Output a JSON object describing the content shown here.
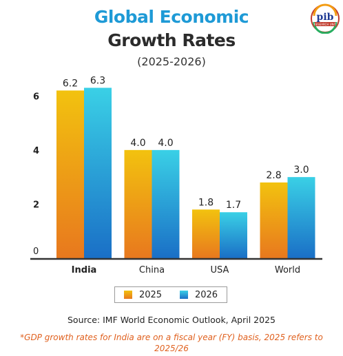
{
  "header": {
    "title_line1": "Global Economic",
    "title_line2": "Growth Rates",
    "subtitle": "(2025-2026)"
  },
  "logo": {
    "text": "pib",
    "caption": "RESEARCH UNIT"
  },
  "chart_data": {
    "type": "bar",
    "categories": [
      "India",
      "China",
      "USA",
      "World"
    ],
    "series": [
      {
        "name": "2025",
        "values": [
          6.2,
          4.0,
          1.8,
          2.8
        ],
        "labels": [
          "6.2",
          "4.0",
          "1.8",
          "2.8"
        ]
      },
      {
        "name": "2026",
        "values": [
          6.3,
          4.0,
          1.7,
          3.0
        ],
        "labels": [
          "6.3",
          "4.0",
          "1.7",
          "3.0"
        ]
      }
    ],
    "yticks": [
      0,
      2,
      4,
      6
    ],
    "ylim": [
      0,
      7
    ],
    "grid": false,
    "legend_position": "bottom",
    "highlight_category": "India",
    "colors": {
      "2025_top": "#f2c20f",
      "2025_bottom": "#e8781e",
      "2026_top": "#3ad0e6",
      "2026_bottom": "#1a6fc6",
      "axis": "#333333"
    }
  },
  "legend": {
    "items": [
      {
        "label": "2025"
      },
      {
        "label": "2026"
      }
    ]
  },
  "source": "Source: IMF World Economic Outlook, April 2025",
  "footnote": "*GDP growth rates for India are on a fiscal year (FY) basis, 2025 refers to 2025/26"
}
